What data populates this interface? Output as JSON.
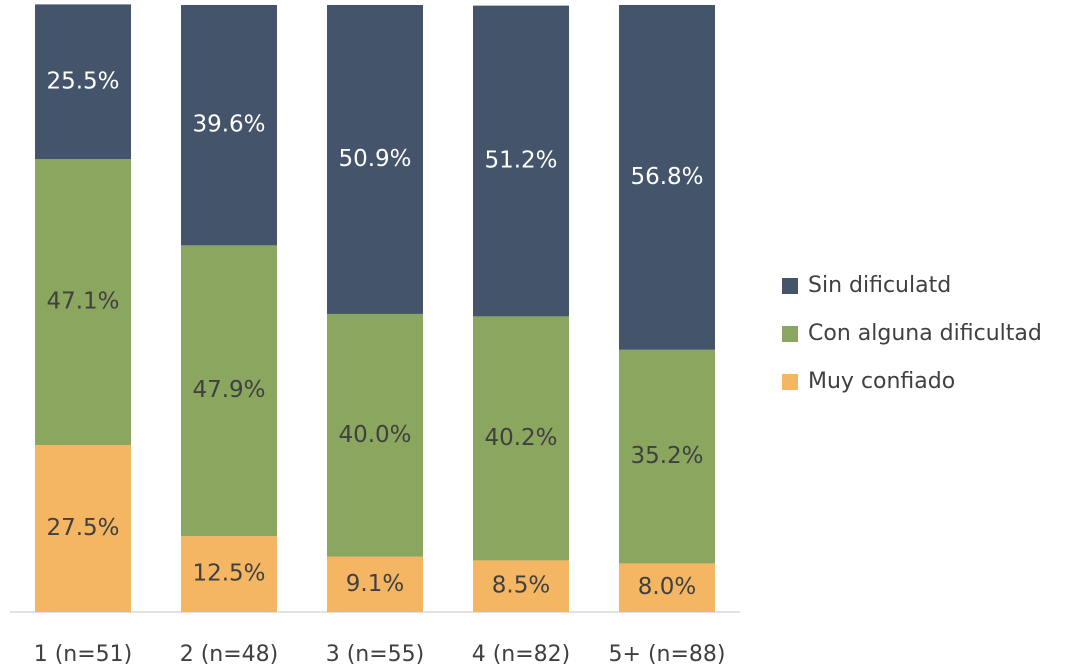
{
  "chart_data": {
    "type": "stacked_bar",
    "categories": [
      "1 (n=51)",
      "2 (n=48)",
      "3 (n=55)",
      "4 (n=82)",
      "5+ (n=88)"
    ],
    "series": [
      {
        "name": "Sin dificulatd",
        "color": "#44546a",
        "values": [
          25.5,
          39.6,
          50.9,
          51.2,
          56.8
        ],
        "value_labels": [
          "25.5%",
          "39.6%",
          "50.9%",
          "51.2%",
          "56.8%"
        ]
      },
      {
        "name": "Con alguna dificultad",
        "color": "#8ba65e",
        "values": [
          47.1,
          47.9,
          40.0,
          40.2,
          35.2
        ],
        "value_labels": [
          "47.1%",
          "47.9%",
          "40.0%",
          "40.2%",
          "35.2%"
        ]
      },
      {
        "name": "Muy confiado",
        "color": "#f4b663",
        "values": [
          27.5,
          12.5,
          9.1,
          8.5,
          8.0
        ],
        "value_labels": [
          "27.5%",
          "12.5%",
          "9.1%",
          "8.5%",
          "8.0%"
        ]
      }
    ],
    "ylim": [
      0,
      100
    ],
    "legend": "right"
  }
}
